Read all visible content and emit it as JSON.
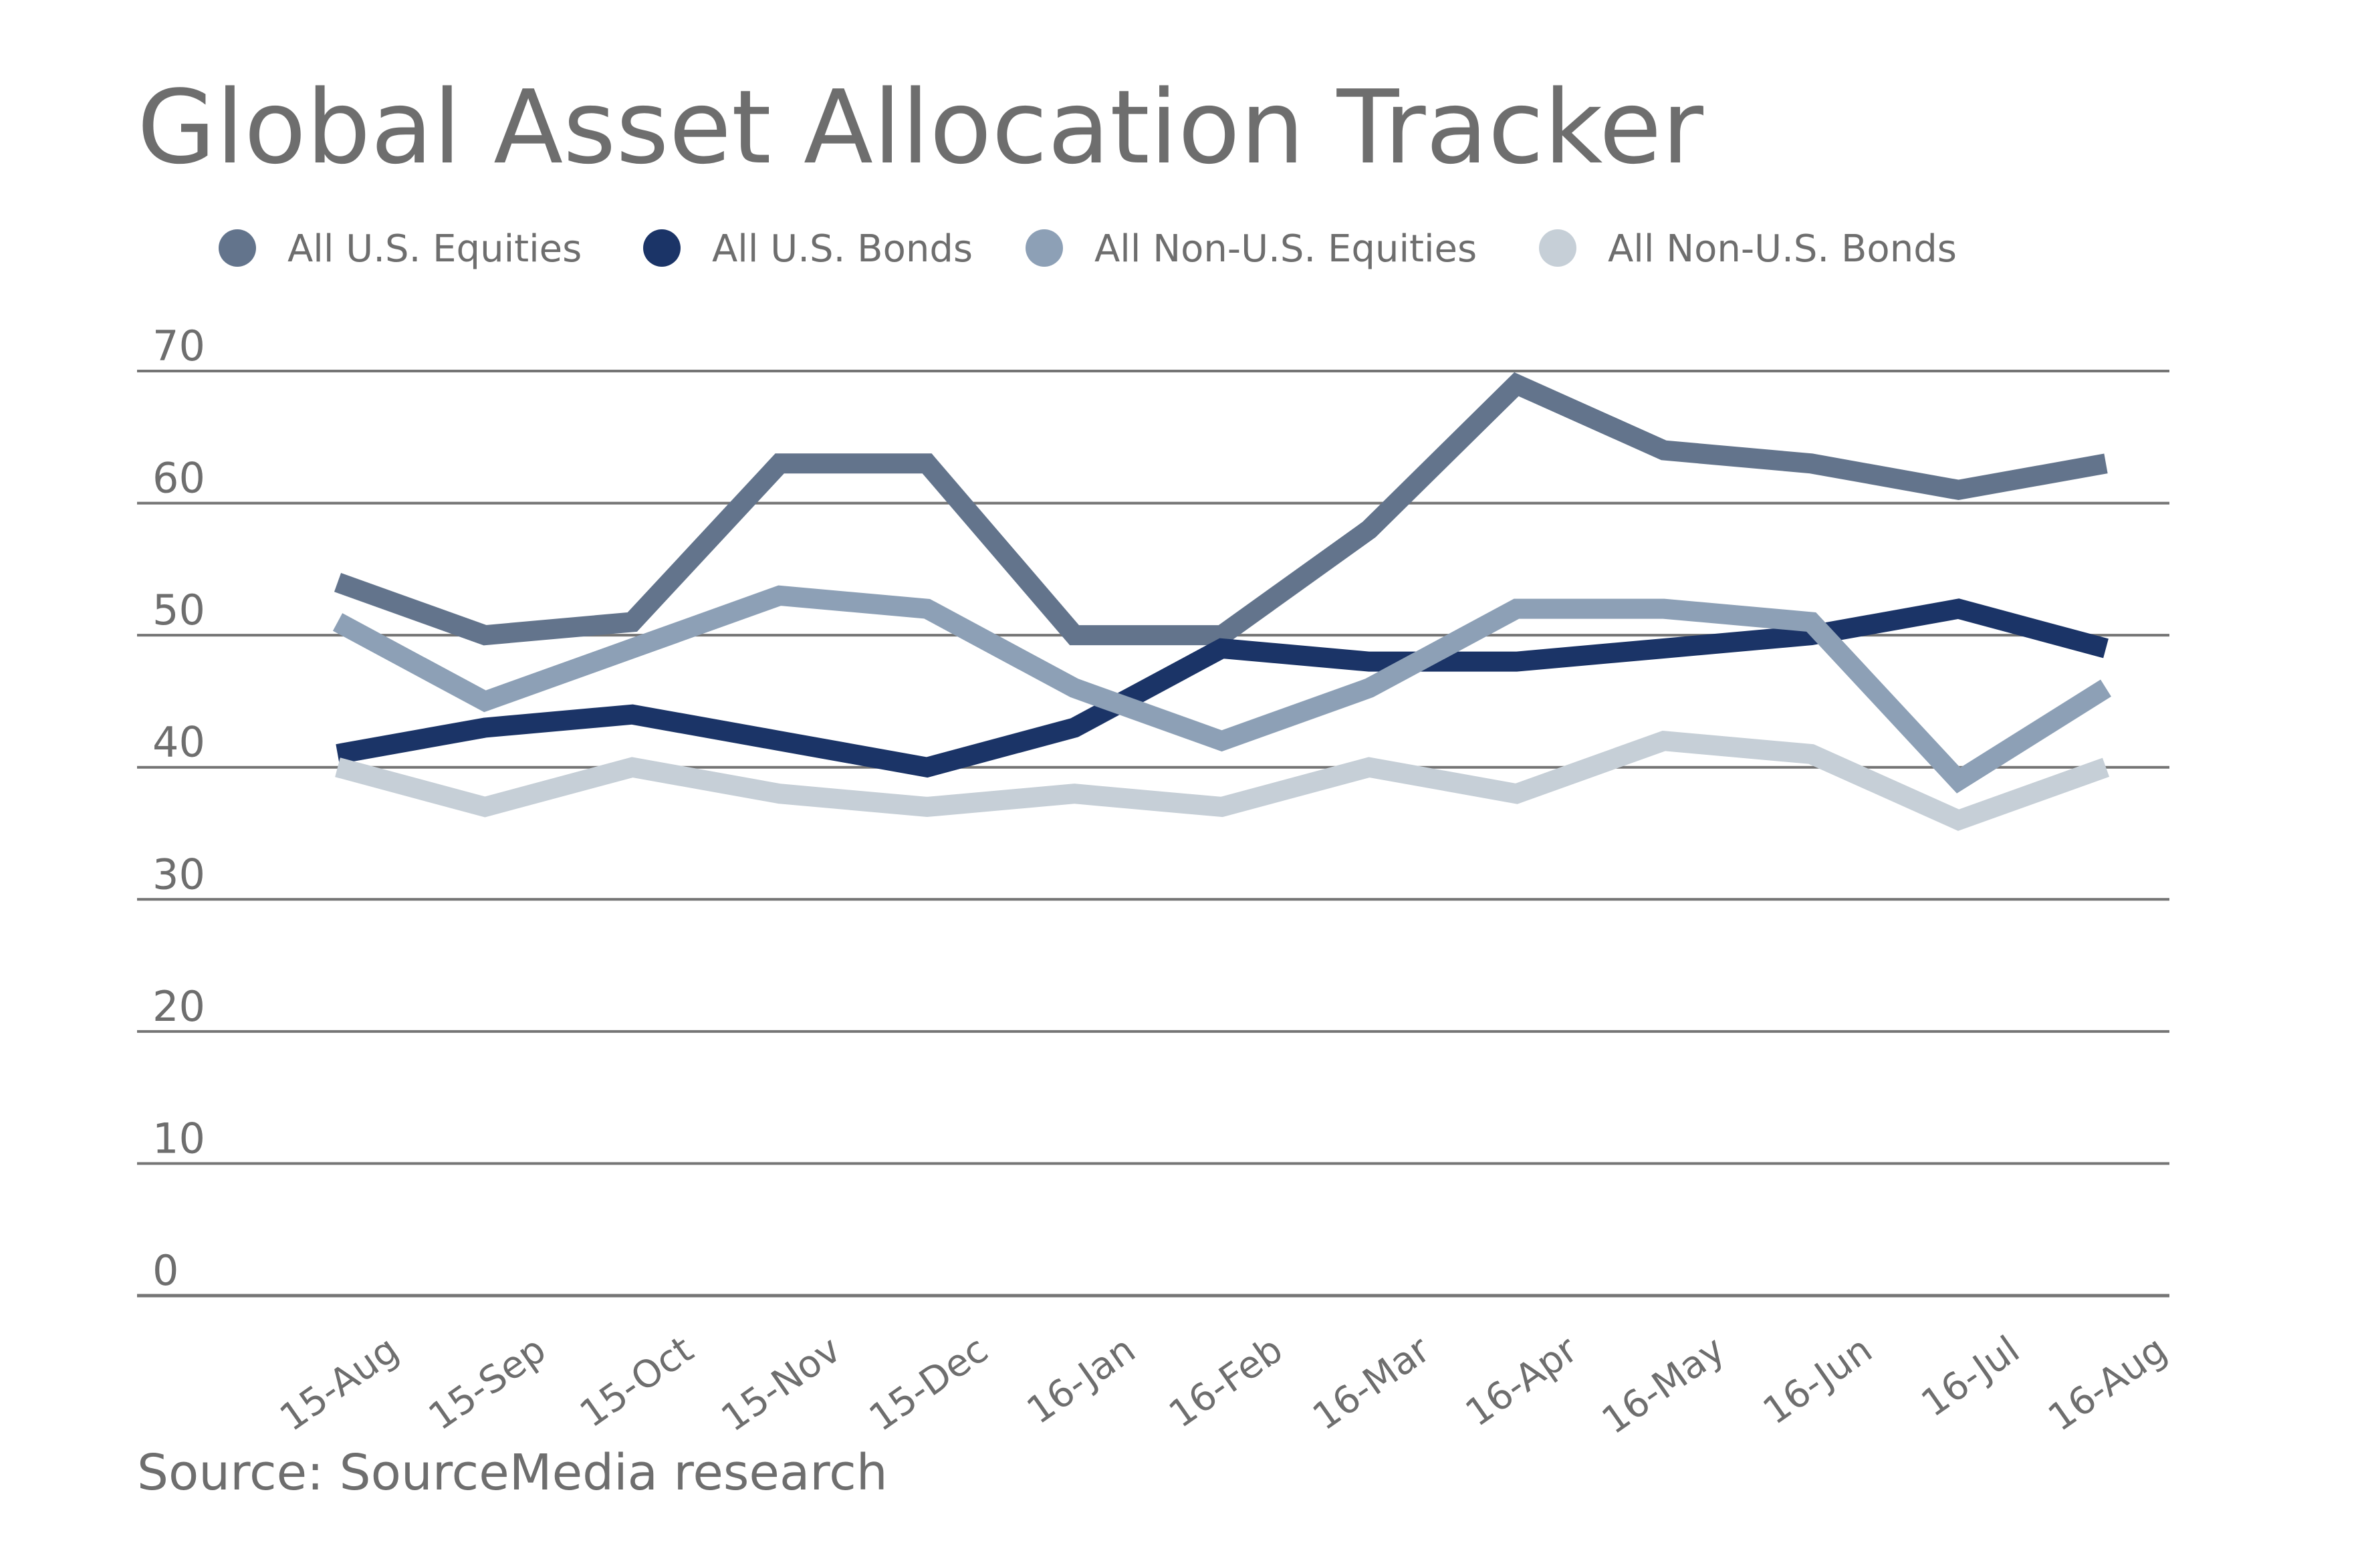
{
  "title": "Global Asset Allocation Tracker",
  "source": {
    "text": "Source: SourceMedia research"
  },
  "colors": {
    "background": "#FFFFFF",
    "text": "#6E6E6E",
    "gridline": "#757575",
    "us_equities": "#63748C",
    "us_bonds": "#1B3467",
    "non_us_equities": "#8DA0B6",
    "non_us_bonds": "#C6CFD7"
  },
  "chart_data": {
    "type": "line",
    "title": "Global Asset Allocation Tracker",
    "xlabel": "",
    "ylabel": "",
    "ylim": [
      0,
      70
    ],
    "yticks": [
      0,
      10,
      20,
      30,
      40,
      50,
      60,
      70
    ],
    "grid": "horizontal",
    "legend_position": "top",
    "categories": [
      "15-Aug",
      "15-Sep",
      "15-Oct",
      "15-Nov",
      "15-Dec",
      "16-Jan",
      "16-Feb",
      "16-Mar",
      "16-Apr",
      "16-May",
      "16-Jun",
      "16-Jul",
      "16-Aug"
    ],
    "series": [
      {
        "name": "All U.S. Equities",
        "color": "#63748C",
        "values": [
          54,
          50,
          51,
          63,
          63,
          50,
          50,
          58,
          69,
          64,
          63,
          61,
          63
        ]
      },
      {
        "name": "All U.S. Bonds",
        "color": "#1B3467",
        "values": [
          41,
          43,
          44,
          42,
          40,
          43,
          49,
          48,
          48,
          49,
          50,
          52,
          49
        ]
      },
      {
        "name": "All Non-U.S. Equities",
        "color": "#8DA0B6",
        "values": [
          51,
          45,
          49,
          53,
          52,
          46,
          42,
          46,
          52,
          52,
          51,
          39,
          46
        ]
      },
      {
        "name": "All Non-U.S. Bonds",
        "color": "#C6CFD7",
        "values": [
          40,
          37,
          40,
          38,
          37,
          38,
          37,
          40,
          38,
          42,
          41,
          36,
          40
        ]
      }
    ],
    "source": "Source: SourceMedia research"
  }
}
